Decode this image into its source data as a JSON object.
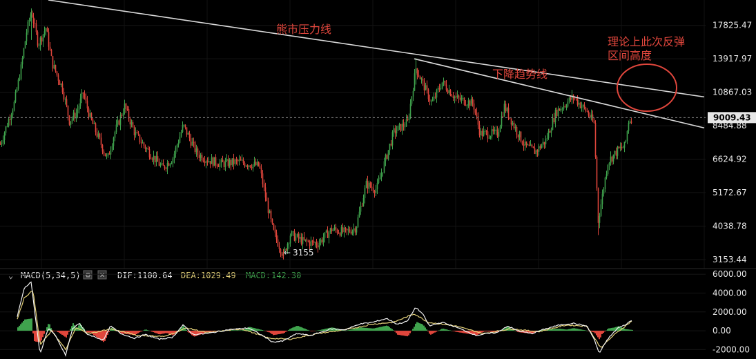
{
  "colors": {
    "background": "#000000",
    "up": "#3fa34d",
    "down": "#e0463c",
    "trendline": "#d9d9d9",
    "annotation": "#e0463c",
    "dif_line": "#f2f2f2",
    "dea_line": "#e6d37a",
    "macd_value": "#3fa34d",
    "dea_label": "#e6d37a",
    "price_badge": "#e6e6e6"
  },
  "chart_data": [
    {
      "type": "candlestick",
      "y_axis": {
        "scale": "log",
        "range": [
          2950,
          21500
        ],
        "ticks": [
          {
            "value": 17825.47,
            "label": "17825.47"
          },
          {
            "value": 13917.97,
            "label": "13917.97"
          },
          {
            "value": 10867.03,
            "label": "10867.03"
          },
          {
            "value": 8484.88,
            "label": "8484.88"
          },
          {
            "value": 6624.92,
            "label": "6624.92"
          },
          {
            "value": 5172.67,
            "label": "5172.67"
          },
          {
            "value": 4038.78,
            "label": "4038.78"
          },
          {
            "value": 3153.44,
            "label": "3153.44"
          }
        ]
      },
      "current_price": {
        "value": 9009.43,
        "label": "9009.43"
      },
      "low_marker": {
        "value": 3155,
        "label": "3155"
      },
      "price_path": [
        [
          0,
          7400
        ],
        [
          10,
          8600
        ],
        [
          20,
          10000
        ],
        [
          30,
          13000
        ],
        [
          38,
          17000
        ],
        [
          45,
          19800
        ],
        [
          55,
          15500
        ],
        [
          66,
          17500
        ],
        [
          75,
          13500
        ],
        [
          90,
          11200
        ],
        [
          100,
          8800
        ],
        [
          110,
          9300
        ],
        [
          120,
          10800
        ],
        [
          130,
          9000
        ],
        [
          145,
          7500
        ],
        [
          155,
          6600
        ],
        [
          165,
          8000
        ],
        [
          180,
          9800
        ],
        [
          195,
          8000
        ],
        [
          215,
          7000
        ],
        [
          235,
          6200
        ],
        [
          250,
          6700
        ],
        [
          265,
          8500
        ],
        [
          285,
          6900
        ],
        [
          300,
          6600
        ],
        [
          320,
          6400
        ],
        [
          345,
          6500
        ],
        [
          375,
          6300
        ],
        [
          385,
          4900
        ],
        [
          395,
          3900
        ],
        [
          410,
          3250
        ],
        [
          420,
          3800
        ],
        [
          440,
          3600
        ],
        [
          460,
          3550
        ],
        [
          480,
          3950
        ],
        [
          500,
          3850
        ],
        [
          515,
          4000
        ],
        [
          530,
          5500
        ],
        [
          545,
          5300
        ],
        [
          555,
          6300
        ],
        [
          570,
          8100
        ],
        [
          590,
          8700
        ],
        [
          602,
          13000
        ],
        [
          615,
          11200
        ],
        [
          625,
          10000
        ],
        [
          640,
          11700
        ],
        [
          660,
          10400
        ],
        [
          685,
          10000
        ],
        [
          695,
          8000
        ],
        [
          720,
          8000
        ],
        [
          730,
          9800
        ],
        [
          745,
          8400
        ],
        [
          760,
          7300
        ],
        [
          775,
          7000
        ],
        [
          790,
          7600
        ],
        [
          805,
          9400
        ],
        [
          830,
          10500
        ],
        [
          850,
          9400
        ],
        [
          860,
          8600
        ],
        [
          866,
          4200
        ],
        [
          880,
          6500
        ],
        [
          895,
          7100
        ],
        [
          905,
          7300
        ],
        [
          910,
          8800
        ],
        [
          915,
          9009
        ]
      ],
      "trendlines": [
        {
          "label": "熊市压力线",
          "from": {
            "bar": 70,
            "price": 21500
          },
          "to": {
            "bar": 1020,
            "price": 10500
          }
        },
        {
          "label": "下降趋势线",
          "from": {
            "bar": 600,
            "price": 13917.97
          },
          "to": {
            "bar": 1020,
            "price": 8350
          }
        }
      ],
      "annotations": [
        {
          "text": "熊市压力线"
        },
        {
          "text": "下降趋势线"
        },
        {
          "lines": [
            "理论上此次反弹",
            "区间高度"
          ],
          "circle": true
        }
      ]
    },
    {
      "type": "macd",
      "header": {
        "name": "MACD(5,34,5)",
        "dif_label": "DIF:",
        "dif_value": "1100.64",
        "dea_label": "DEA:",
        "dea_value": "1029.49",
        "macd_label": "MACD:",
        "macd_value": "142.30"
      },
      "y_axis": {
        "range": [
          -3000,
          6600
        ],
        "ticks": [
          {
            "value": 6000,
            "label": "6000.00"
          },
          {
            "value": 4000,
            "label": "4000.00"
          },
          {
            "value": 2000,
            "label": "2000.00"
          },
          {
            "value": 0,
            "label": "0.00"
          },
          {
            "value": -2000,
            "label": "-2000.00"
          }
        ]
      },
      "dif_path": [
        [
          25,
          1500
        ],
        [
          35,
          4500
        ],
        [
          45,
          5200
        ],
        [
          52,
          1000
        ],
        [
          58,
          -2500
        ],
        [
          70,
          300
        ],
        [
          80,
          -500
        ],
        [
          95,
          -2600
        ],
        [
          105,
          200
        ],
        [
          115,
          800
        ],
        [
          125,
          -300
        ],
        [
          135,
          -600
        ],
        [
          150,
          -1000
        ],
        [
          160,
          500
        ],
        [
          175,
          -300
        ],
        [
          195,
          -800
        ],
        [
          210,
          -400
        ],
        [
          230,
          -900
        ],
        [
          250,
          -700
        ],
        [
          265,
          600
        ],
        [
          280,
          -400
        ],
        [
          300,
          -300
        ],
        [
          330,
          100
        ],
        [
          360,
          300
        ],
        [
          380,
          -500
        ],
        [
          395,
          -1200
        ],
        [
          410,
          -1100
        ],
        [
          430,
          -300
        ],
        [
          450,
          -500
        ],
        [
          480,
          200
        ],
        [
          500,
          100
        ],
        [
          520,
          700
        ],
        [
          540,
          900
        ],
        [
          560,
          1300
        ],
        [
          575,
          700
        ],
        [
          590,
          1000
        ],
        [
          602,
          2500
        ],
        [
          612,
          1800
        ],
        [
          622,
          500
        ],
        [
          640,
          900
        ],
        [
          660,
          400
        ],
        [
          690,
          -500
        ],
        [
          705,
          -300
        ],
        [
          720,
          -200
        ],
        [
          735,
          500
        ],
        [
          750,
          0
        ],
        [
          770,
          -300
        ],
        [
          790,
          200
        ],
        [
          810,
          600
        ],
        [
          830,
          800
        ],
        [
          850,
          500
        ],
        [
          860,
          -800
        ],
        [
          868,
          -2400
        ],
        [
          880,
          -900
        ],
        [
          895,
          300
        ],
        [
          905,
          600
        ],
        [
          915,
          1100
        ]
      ],
      "dea_path": [
        [
          25,
          1200
        ],
        [
          35,
          3500
        ],
        [
          48,
          4300
        ],
        [
          58,
          -1500
        ],
        [
          75,
          0
        ],
        [
          95,
          -2000
        ],
        [
          110,
          300
        ],
        [
          130,
          -300
        ],
        [
          160,
          200
        ],
        [
          200,
          -500
        ],
        [
          240,
          -600
        ],
        [
          270,
          300
        ],
        [
          300,
          -200
        ],
        [
          350,
          200
        ],
        [
          390,
          -800
        ],
        [
          420,
          -900
        ],
        [
          460,
          -300
        ],
        [
          500,
          100
        ],
        [
          540,
          700
        ],
        [
          570,
          900
        ],
        [
          600,
          1800
        ],
        [
          620,
          900
        ],
        [
          660,
          500
        ],
        [
          700,
          -300
        ],
        [
          740,
          200
        ],
        [
          780,
          -100
        ],
        [
          820,
          600
        ],
        [
          850,
          500
        ],
        [
          870,
          -1800
        ],
        [
          890,
          -400
        ],
        [
          915,
          1029
        ]
      ]
    }
  ]
}
